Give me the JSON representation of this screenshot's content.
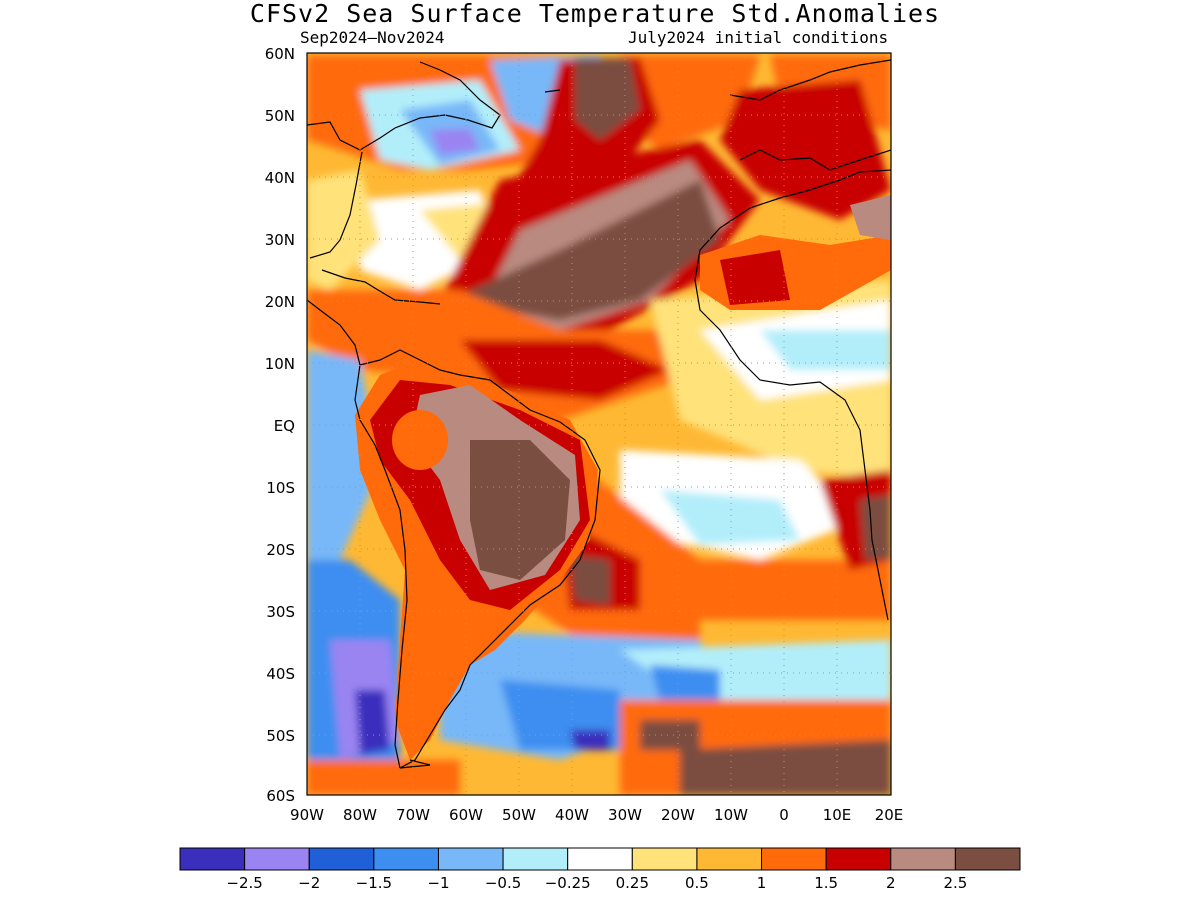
{
  "title": "CFSv2 Sea Surface Temperature Std.Anomalies",
  "subtitle_left": "Sep2024–Nov2024",
  "subtitle_right": "July2024 initial conditions",
  "map": {
    "lon_range": [
      -90,
      20
    ],
    "lat_range": [
      -60,
      60
    ],
    "lat_labels": [
      "60N",
      "50N",
      "40N",
      "30N",
      "20N",
      "10N",
      "EQ",
      "10S",
      "20S",
      "30S",
      "40S",
      "50S",
      "60S"
    ],
    "lon_labels": [
      "90W",
      "80W",
      "70W",
      "60W",
      "50W",
      "40W",
      "30W",
      "20W",
      "10W",
      "0",
      "10E",
      "20E"
    ],
    "grid": "dotted"
  },
  "colorbar": {
    "colors": [
      "#3a2fbd",
      "#9a84f2",
      "#1f60d9",
      "#3c8ef0",
      "#78b8f8",
      "#b2eefa",
      "#ffffff",
      "#ffe27a",
      "#ffb833",
      "#ff6a0a",
      "#c80000",
      "#b98a80",
      "#7a4e40"
    ],
    "labels": [
      "−2.5",
      "−2",
      "−1.5",
      "−1",
      "−0.5",
      "−0.25",
      "0.25",
      "0.5",
      "1",
      "1.5",
      "2",
      "2.5"
    ]
  }
}
